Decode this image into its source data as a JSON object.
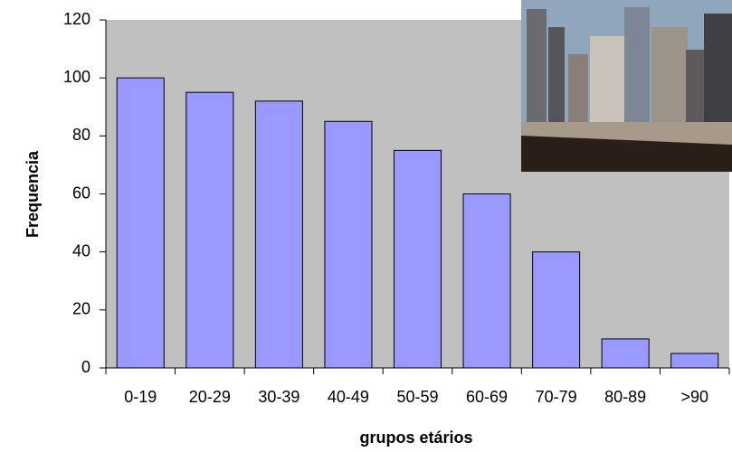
{
  "chart_data": {
    "type": "bar",
    "x_label": "grupos etários",
    "y_label": "Frequencia",
    "categories": [
      "0-19",
      "20-29",
      "30-39",
      "40-49",
      "50-59",
      "60-69",
      "70-79",
      "80-89",
      ">90"
    ],
    "values": [
      100,
      95,
      92,
      85,
      75,
      60,
      40,
      10,
      5
    ],
    "color": "#9999ff",
    "background": "#c0c0c0",
    "ylim": [
      0,
      120
    ],
    "yticks": [
      0,
      20,
      40,
      60,
      80,
      100,
      120
    ],
    "grid": false
  }
}
